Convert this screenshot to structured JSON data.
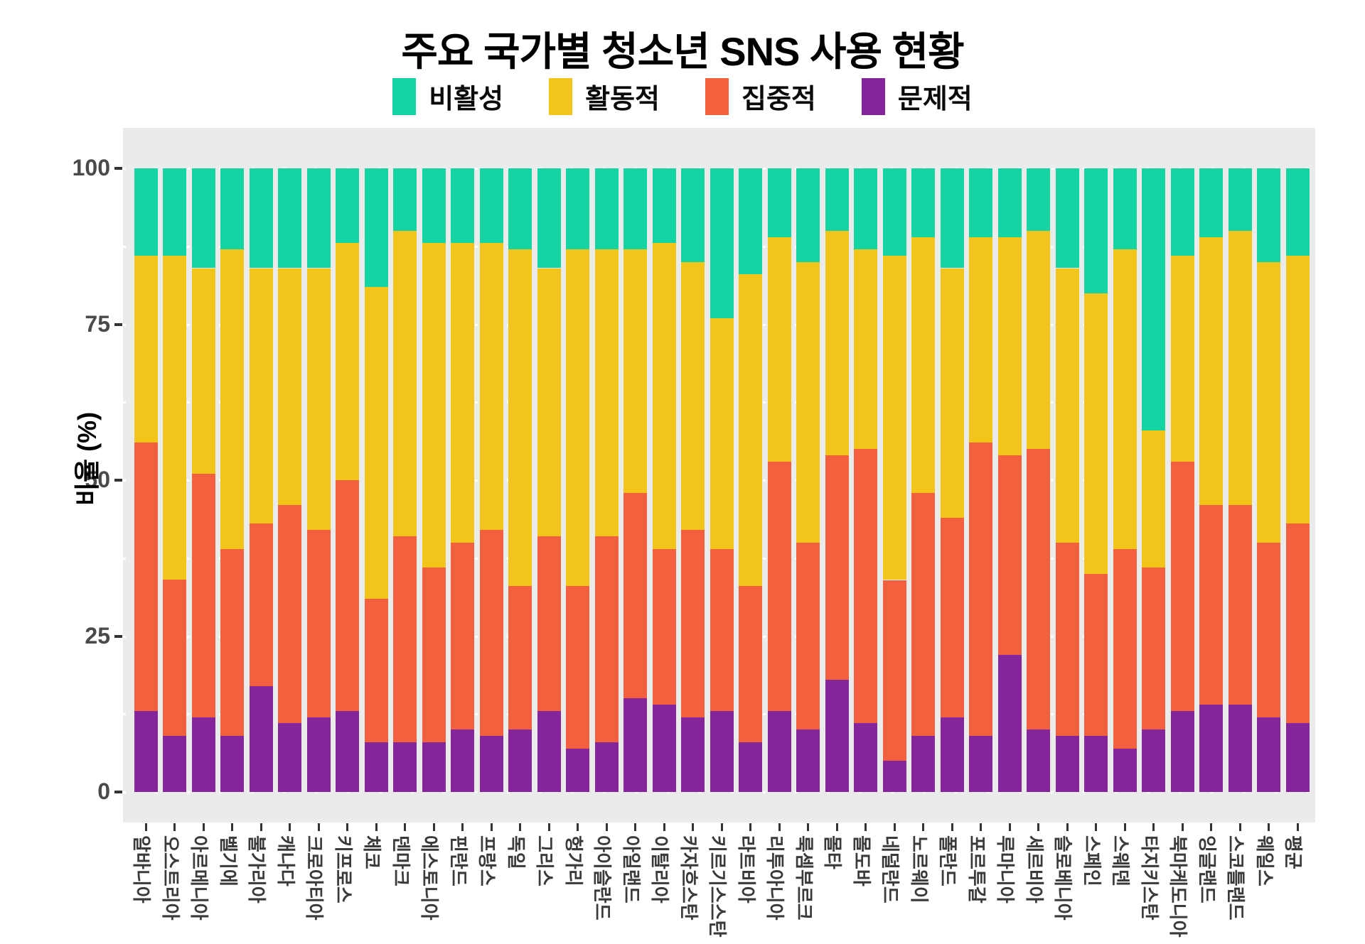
{
  "title": "주요 국가별 청소년 SNS 사용 현황",
  "y_axis": {
    "title": "비율 (%)",
    "ticks": [
      "0",
      "25",
      "50",
      "75",
      "100"
    ]
  },
  "legend": [
    {
      "label": "비활성",
      "color": "#15D4A4"
    },
    {
      "label": "활동적",
      "color": "#F3C41A"
    },
    {
      "label": "집중적",
      "color": "#F2603E"
    },
    {
      "label": "문제적",
      "color": "#84259B"
    }
  ],
  "colors": {
    "panel_background": "#EBEBEB",
    "gridline": "#FFFFFF",
    "axis_text": "#3A3A3A"
  },
  "chart_data": {
    "type": "bar",
    "stacked": true,
    "title": "주요 국가별 청소년 SNS 사용 현황",
    "xlabel": "",
    "ylabel": "비율 (%)",
    "ylim": [
      0,
      100
    ],
    "grid": true,
    "legend_position": "top",
    "categories": [
      "알바니아",
      "오스트리아",
      "아르메니아",
      "벨기에",
      "불가리아",
      "캐나다",
      "크로아티아",
      "키프로스",
      "체코",
      "덴마크",
      "에스토니아",
      "핀란드",
      "프랑스",
      "독일",
      "그리스",
      "헝가리",
      "아이슬란드",
      "아일랜드",
      "이탈리아",
      "카자흐스탄",
      "키르기스스탄",
      "라트비아",
      "리투아니아",
      "룩셈부르크",
      "몰타",
      "몰도바",
      "네덜란드",
      "노르웨이",
      "폴란드",
      "포르투갈",
      "루마니아",
      "세르비아",
      "슬로베니아",
      "스페인",
      "스웨덴",
      "타지키스탄",
      "북마케도니아",
      "잉글랜드",
      "스코틀랜드",
      "웨일스",
      "평균"
    ],
    "series": [
      {
        "name": "문제적",
        "color": "#84259B",
        "values": [
          13,
          9,
          12,
          9,
          17,
          11,
          12,
          13,
          8,
          8,
          8,
          10,
          9,
          10,
          13,
          7,
          8,
          15,
          14,
          12,
          13,
          8,
          13,
          10,
          18,
          11,
          5,
          9,
          12,
          9,
          22,
          10,
          9,
          9,
          7,
          10,
          13,
          14,
          14,
          12,
          11
        ]
      },
      {
        "name": "집중적",
        "color": "#F2603E",
        "values": [
          43,
          25,
          39,
          30,
          26,
          35,
          30,
          37,
          23,
          33,
          28,
          30,
          33,
          23,
          28,
          26,
          33,
          33,
          25,
          30,
          26,
          25,
          40,
          30,
          36,
          44,
          29,
          39,
          32,
          47,
          32,
          45,
          31,
          26,
          32,
          26,
          40,
          32,
          32,
          28,
          32
        ]
      },
      {
        "name": "활동적",
        "color": "#F3C41A",
        "values": [
          30,
          52,
          33,
          48,
          41,
          38,
          42,
          38,
          50,
          49,
          52,
          48,
          46,
          54,
          43,
          54,
          46,
          39,
          49,
          43,
          37,
          50,
          36,
          45,
          36,
          32,
          52,
          41,
          40,
          33,
          35,
          35,
          44,
          45,
          48,
          22,
          33,
          43,
          44,
          45,
          43
        ]
      },
      {
        "name": "비활성",
        "color": "#15D4A4",
        "values": [
          14,
          14,
          16,
          13,
          16,
          16,
          16,
          12,
          19,
          10,
          12,
          12,
          12,
          13,
          16,
          13,
          13,
          13,
          12,
          15,
          24,
          17,
          11,
          15,
          10,
          13,
          14,
          11,
          16,
          11,
          11,
          10,
          16,
          20,
          13,
          42,
          14,
          11,
          10,
          15,
          14
        ]
      }
    ]
  }
}
